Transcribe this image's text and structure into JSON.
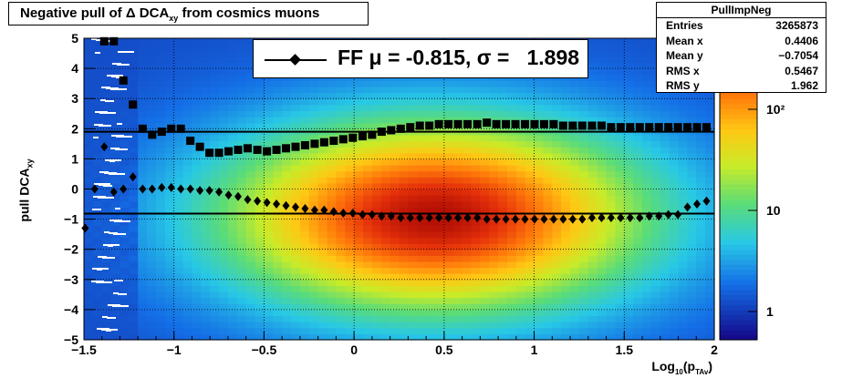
{
  "title": {
    "main": "Negative pull of Δ DCA",
    "sub": "xy",
    "suffix": " from cosmics muons"
  },
  "stats": {
    "name": "PullImpNeg",
    "rows": [
      {
        "label": "Entries",
        "value": "3265873"
      },
      {
        "label": "Mean x",
        "value": "0.4406"
      },
      {
        "label": "Mean y",
        "value": "−0.7054"
      },
      {
        "label": "RMS x",
        "value": "0.5467"
      },
      {
        "label": "RMS y",
        "value": "1.962"
      }
    ]
  },
  "legend": {
    "text": "FF μ = -0.815, σ =   1.898"
  },
  "axes": {
    "ylabel_main": "pull DCA",
    "ylabel_sub": "xy",
    "xlabel_main": "Log",
    "xlabel_sub1": "10",
    "xlabel_mid": "(p",
    "xlabel_sub2": "TAv",
    "xlabel_end": ")"
  },
  "chart_data": {
    "type": "heatmap",
    "xlim": [
      -1.5,
      2
    ],
    "ylim": [
      -5,
      5
    ],
    "x_ticks": [
      "−1.5",
      "−1",
      "−0.5",
      "0",
      "0.5",
      "1",
      "1.5",
      "2"
    ],
    "y_ticks": [
      "−5",
      "−4",
      "−3",
      "−2",
      "−1",
      "0",
      "1",
      "2",
      "3",
      "4",
      "5"
    ],
    "colorbar_ticks": [
      "1",
      "10",
      "10²"
    ],
    "z_scale": "log",
    "grid": true,
    "fit_lines": [
      {
        "name": "mean",
        "y": -0.815
      },
      {
        "name": "sigma",
        "y": 1.898
      }
    ],
    "series": [
      {
        "marker": "square",
        "x": [
          -1.387,
          -1.334,
          -1.281,
          -1.228,
          -1.174,
          -1.121,
          -1.068,
          -1.015,
          -0.962,
          -0.909,
          -0.856,
          -0.803,
          -0.75,
          -0.697,
          -0.644,
          -0.591,
          -0.537,
          -0.484,
          -0.431,
          -0.378,
          -0.325,
          -0.272,
          -0.219,
          -0.166,
          -0.113,
          -0.06,
          -0.007,
          0.047,
          0.1,
          0.153,
          0.206,
          0.259,
          0.312,
          0.365,
          0.418,
          0.471,
          0.524,
          0.577,
          0.63,
          0.684,
          0.737,
          0.79,
          0.843,
          0.896,
          0.949,
          1.002,
          1.055,
          1.108,
          1.161,
          1.214,
          1.267,
          1.321,
          1.374,
          1.427,
          1.48,
          1.533,
          1.586,
          1.639,
          1.692,
          1.745,
          1.798,
          1.851,
          1.904,
          1.957
        ],
        "y": [
          4.9,
          4.9,
          3.6,
          2.8,
          2.0,
          1.8,
          1.9,
          2.0,
          2.0,
          1.6,
          1.4,
          1.2,
          1.2,
          1.25,
          1.3,
          1.35,
          1.3,
          1.25,
          1.3,
          1.35,
          1.4,
          1.45,
          1.5,
          1.55,
          1.6,
          1.65,
          1.7,
          1.75,
          1.8,
          1.9,
          1.95,
          2.0,
          2.05,
          2.1,
          2.1,
          2.15,
          2.15,
          2.15,
          2.15,
          2.15,
          2.2,
          2.15,
          2.15,
          2.15,
          2.15,
          2.15,
          2.15,
          2.15,
          2.1,
          2.1,
          2.1,
          2.1,
          2.1,
          2.05,
          2.05,
          2.05,
          2.05,
          2.05,
          2.05,
          2.05,
          2.05,
          2.05,
          2.05,
          2.05
        ]
      },
      {
        "marker": "diamond",
        "x": [
          -1.493,
          -1.44,
          -1.387,
          -1.334,
          -1.281,
          -1.228,
          -1.174,
          -1.121,
          -1.068,
          -1.015,
          -0.962,
          -0.909,
          -0.856,
          -0.803,
          -0.75,
          -0.697,
          -0.644,
          -0.591,
          -0.537,
          -0.484,
          -0.431,
          -0.378,
          -0.325,
          -0.272,
          -0.219,
          -0.166,
          -0.113,
          -0.06,
          -0.007,
          0.047,
          0.1,
          0.153,
          0.206,
          0.259,
          0.312,
          0.365,
          0.418,
          0.471,
          0.524,
          0.577,
          0.63,
          0.684,
          0.737,
          0.79,
          0.843,
          0.896,
          0.949,
          1.002,
          1.055,
          1.108,
          1.161,
          1.214,
          1.267,
          1.321,
          1.374,
          1.427,
          1.48,
          1.533,
          1.586,
          1.639,
          1.692,
          1.745,
          1.798,
          1.851,
          1.904,
          1.957
        ],
        "y": [
          -1.3,
          0.0,
          1.4,
          -0.1,
          0.0,
          0.4,
          0.0,
          0.0,
          0.05,
          0.05,
          0.0,
          0.0,
          -0.05,
          -0.05,
          -0.1,
          -0.2,
          -0.25,
          -0.35,
          -0.4,
          -0.45,
          -0.5,
          -0.55,
          -0.6,
          -0.65,
          -0.7,
          -0.7,
          -0.75,
          -0.8,
          -0.8,
          -0.85,
          -0.85,
          -0.9,
          -0.9,
          -0.95,
          -0.95,
          -0.95,
          -0.95,
          -0.95,
          -0.95,
          -0.95,
          -0.95,
          -0.95,
          -1.0,
          -1.0,
          -1.0,
          -1.0,
          -1.0,
          -1.0,
          -1.0,
          -1.0,
          -1.0,
          -1.0,
          -1.0,
          -0.95,
          -0.95,
          -0.95,
          -0.95,
          -0.95,
          -0.95,
          -0.9,
          -0.9,
          -0.85,
          -0.85,
          -0.6,
          -0.5,
          -0.4
        ]
      }
    ]
  }
}
